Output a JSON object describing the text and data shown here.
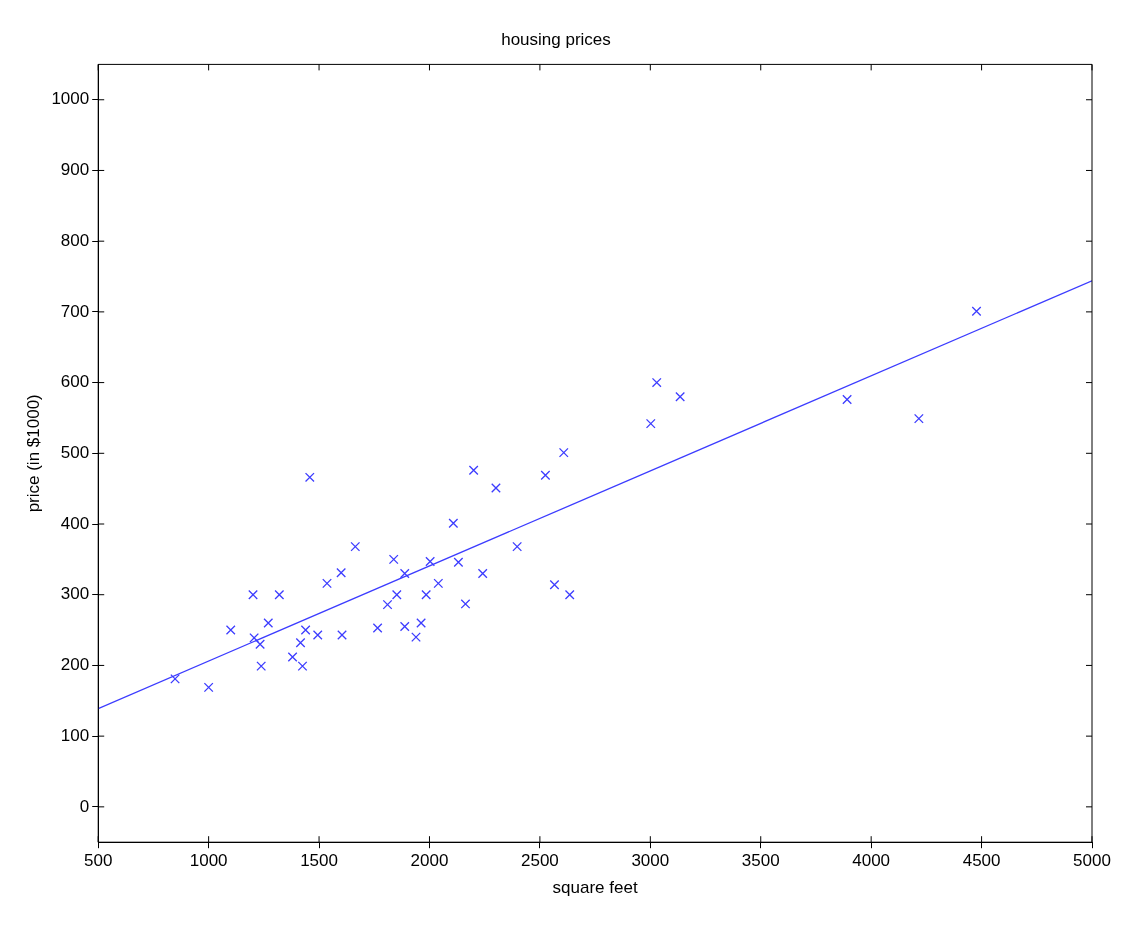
{
  "chart_data": {
    "type": "scatter",
    "title": "housing prices",
    "xlabel": "square feet",
    "ylabel": "price (in $1000)",
    "xlim": [
      500,
      5000
    ],
    "xticks": [
      500,
      1000,
      1500,
      2000,
      2500,
      3000,
      3500,
      4000,
      4500,
      5000
    ],
    "ylim": [
      -50,
      1050
    ],
    "yticks": [
      0,
      100,
      200,
      300,
      400,
      500,
      600,
      700,
      800,
      900,
      1000
    ],
    "grid": false,
    "legend": false,
    "series": [
      {
        "marker": "cross",
        "color": "#3c3cff",
        "x": [
          848,
          1000,
          1100,
          1201,
          1206,
          1233,
          1238,
          1270,
          1320,
          1380,
          1416,
          1425,
          1439,
          1458,
          1494,
          1536,
          1600,
          1604,
          1664,
          1765,
          1810,
          1838,
          1852,
          1888,
          1888,
          1939,
          1962,
          1985,
          2003,
          2040,
          2108,
          2131,
          2163,
          2200,
          2241,
          2301,
          2397,
          2525,
          2566,
          2608,
          2635,
          3002,
          3029,
          3135,
          3891,
          4216,
          4477
        ],
        "values": [
          181,
          169,
          250,
          300,
          239,
          230,
          199,
          260,
          300,
          212,
          232,
          199,
          250,
          466,
          243,
          316,
          331,
          243,
          368,
          253,
          286,
          350,
          300,
          330,
          255,
          240,
          260,
          300,
          347,
          316,
          401,
          346,
          287,
          476,
          330,
          451,
          368,
          469,
          314,
          501,
          300,
          542,
          600,
          580,
          576,
          549,
          701
        ]
      },
      {
        "type": "line",
        "marker": "none",
        "color": "#3c3cff",
        "x": [
          500,
          5000
        ],
        "values": [
          139,
          744
        ]
      }
    ]
  }
}
